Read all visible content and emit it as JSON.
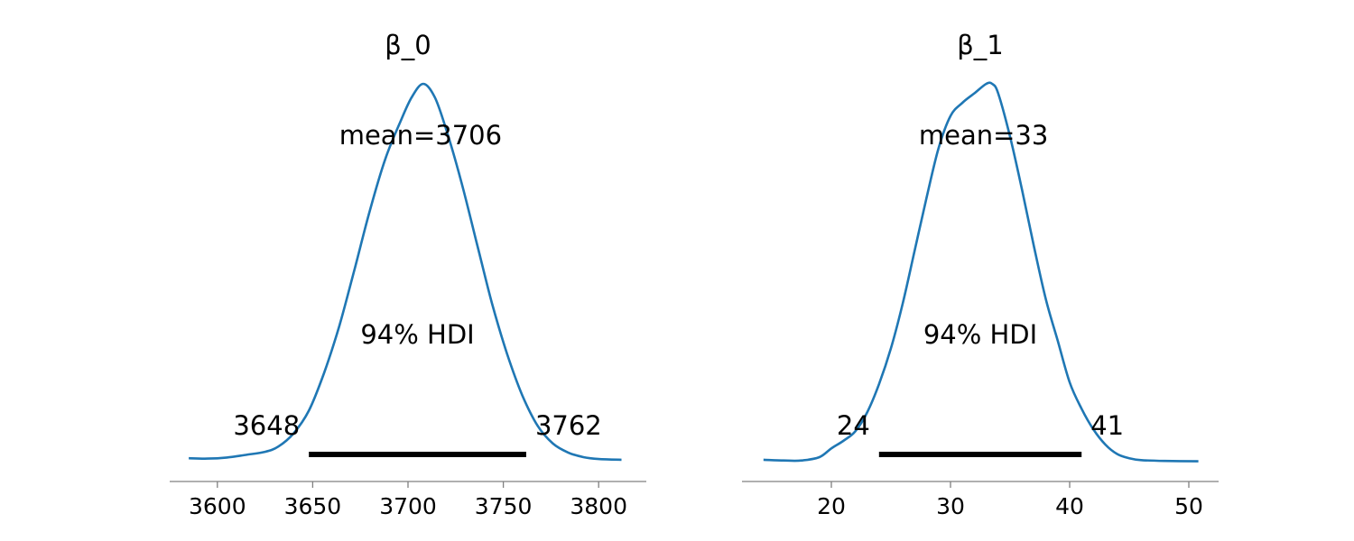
{
  "chart_data": [
    {
      "type": "area",
      "title": "β_0",
      "xlabel": "",
      "ylabel": "",
      "x_ticks": [
        3600,
        3650,
        3700,
        3750,
        3800
      ],
      "xlim": [
        3575,
        3825
      ],
      "mean_label": "mean=3706",
      "hdi_label": "94% HDI",
      "hdi": [
        3648,
        3762
      ],
      "hdi_low_label": "3648",
      "hdi_high_label": "3762",
      "density": {
        "x": [
          3585,
          3595,
          3605,
          3615,
          3625,
          3632,
          3640,
          3648,
          3656,
          3664,
          3672,
          3680,
          3688,
          3696,
          3702,
          3708,
          3714,
          3720,
          3728,
          3736,
          3744,
          3752,
          3760,
          3768,
          3776,
          3784,
          3792,
          3800,
          3812
        ],
        "y": [
          0.009,
          0.008,
          0.011,
          0.018,
          0.026,
          0.04,
          0.075,
          0.135,
          0.235,
          0.36,
          0.51,
          0.665,
          0.8,
          0.9,
          0.965,
          1.0,
          0.965,
          0.88,
          0.74,
          0.58,
          0.42,
          0.285,
          0.175,
          0.095,
          0.048,
          0.024,
          0.012,
          0.007,
          0.005
        ]
      },
      "grid": false
    },
    {
      "type": "area",
      "title": "β_1",
      "xlabel": "",
      "ylabel": "",
      "x_ticks": [
        20,
        30,
        40,
        50
      ],
      "xlim": [
        12.5,
        52.5
      ],
      "mean_label": "mean=33",
      "hdi_label": "94% HDI",
      "hdi": [
        24,
        41
      ],
      "hdi_low_label": "24",
      "hdi_high_label": "41",
      "density": {
        "x": [
          14.3,
          16,
          17.5,
          19,
          20,
          21,
          22,
          23,
          24,
          25,
          26,
          27,
          28,
          29,
          30,
          31,
          32,
          33,
          33.5,
          34,
          35,
          36,
          37,
          38,
          39,
          40,
          41,
          42,
          43,
          44,
          45,
          46,
          48,
          50.8
        ],
        "y": [
          0.005,
          0.003,
          0.003,
          0.012,
          0.035,
          0.055,
          0.08,
          0.13,
          0.205,
          0.3,
          0.42,
          0.56,
          0.7,
          0.83,
          0.915,
          0.95,
          0.975,
          1.0,
          1.0,
          0.975,
          0.86,
          0.72,
          0.57,
          0.43,
          0.32,
          0.21,
          0.14,
          0.085,
          0.045,
          0.02,
          0.009,
          0.004,
          0.002,
          0.001
        ]
      },
      "grid": false
    }
  ]
}
